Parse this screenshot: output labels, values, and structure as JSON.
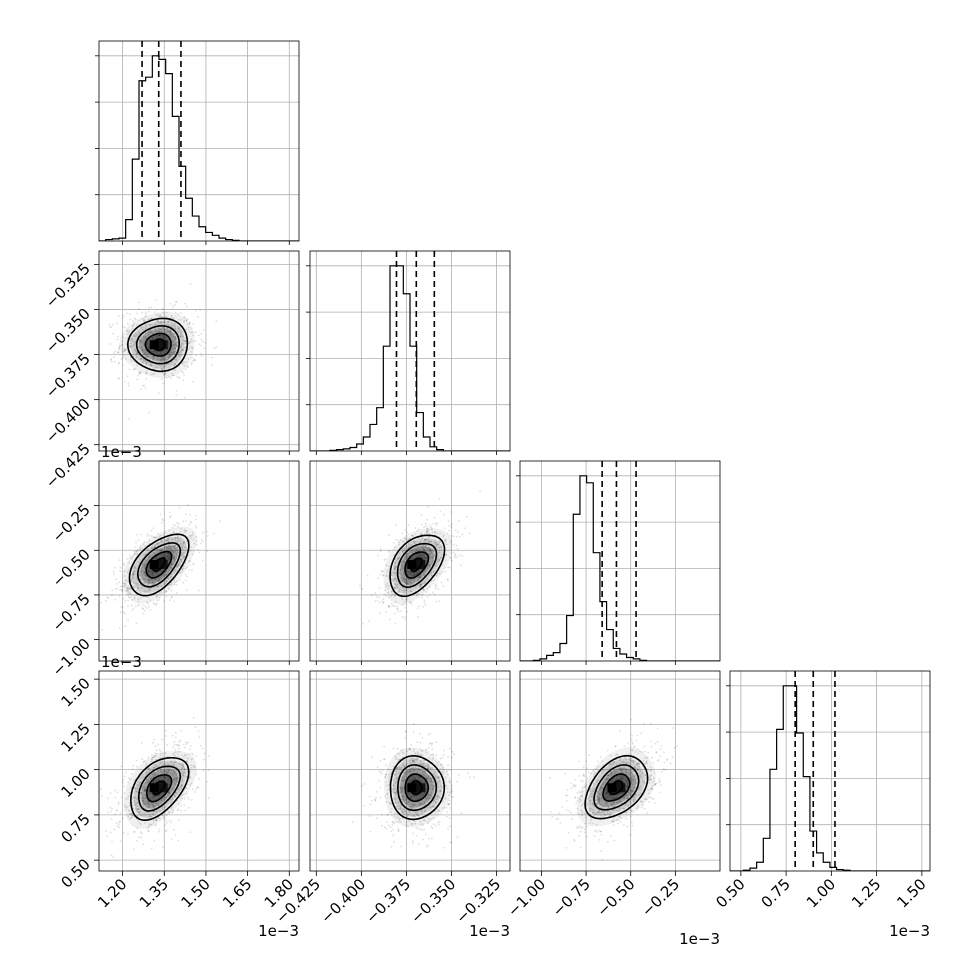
{
  "chart_data": {
    "type": "corner",
    "description_free": true,
    "params": [
      {
        "id": "p0",
        "range": [
          1.115,
          1.835
        ],
        "ticks": [
          1.2,
          1.35,
          1.5,
          1.65,
          1.8
        ],
        "tick_labels": [
          "1.20",
          "1.35",
          "1.50",
          "1.65",
          "1.80"
        ],
        "offset": "1e−3",
        "mean": 1.33,
        "sd": 0.06,
        "quantiles": [
          1.27,
          1.33,
          1.41
        ]
      },
      {
        "id": "p1",
        "range": [
          -0.4285,
          -0.3175
        ],
        "ticks": [
          -0.425,
          -0.4,
          -0.375,
          -0.35,
          -0.325
        ],
        "tick_labels": [
          "−0.425",
          "−0.400",
          "−0.375",
          "−0.350",
          "−0.325"
        ],
        "offset": "1e−3",
        "mean": -0.3695,
        "sd": 0.0085,
        "quantiles": [
          -0.3805,
          -0.3695,
          -0.3595
        ]
      },
      {
        "id": "p2",
        "range": [
          -1.12,
          -0.0
        ],
        "ticks": [
          -1.0,
          -0.75,
          -0.5,
          -0.25
        ],
        "tick_labels": [
          "−1.00",
          "−0.75",
          "−0.50",
          "−0.25"
        ],
        "offset": "1e−3",
        "mean": -0.58,
        "sd": 0.1,
        "quantiles": [
          -0.66,
          -0.58,
          -0.47
        ]
      },
      {
        "id": "p3",
        "range": [
          0.44,
          1.545
        ],
        "ticks": [
          0.5,
          0.75,
          1.0,
          1.25,
          1.5
        ],
        "tick_labels": [
          "0.50",
          "0.75",
          "1.00",
          "1.25",
          "1.50"
        ],
        "offset": "1e−3",
        "mean": 0.9,
        "sd": 0.1,
        "quantiles": [
          0.8,
          0.9,
          1.02
        ]
      }
    ],
    "histograms": [
      {
        "param": "p0",
        "edges_start": 1.115,
        "bin_width": 0.024,
        "counts": [
          0,
          2,
          3,
          4,
          30,
          115,
          225,
          230,
          260,
          255,
          235,
          175,
          105,
          60,
          35,
          20,
          12,
          8,
          4,
          2,
          1,
          0,
          0,
          0,
          0,
          0,
          0,
          0,
          0,
          0
        ]
      },
      {
        "param": "p1",
        "edges_start": -0.4285,
        "bin_width": 0.0037,
        "counts": [
          0,
          0,
          0,
          1,
          2,
          3,
          5,
          10,
          20,
          38,
          62,
          150,
          265,
          265,
          225,
          150,
          55,
          20,
          6,
          2,
          0,
          0,
          0,
          0,
          0,
          0,
          0,
          0,
          0,
          0
        ]
      },
      {
        "param": "p2",
        "edges_start": -1.12,
        "bin_width": 0.0373,
        "counts": [
          0,
          0,
          1,
          3,
          8,
          12,
          25,
          65,
          210,
          265,
          255,
          155,
          85,
          45,
          18,
          10,
          5,
          3,
          1,
          0,
          0,
          0,
          0,
          0,
          0,
          0,
          0,
          0,
          0,
          0
        ]
      },
      {
        "param": "p3",
        "edges_start": 0.44,
        "bin_width": 0.0368,
        "counts": [
          0,
          0,
          1,
          4,
          12,
          45,
          140,
          195,
          255,
          255,
          190,
          130,
          55,
          25,
          12,
          5,
          2,
          1,
          0,
          0,
          0,
          0,
          0,
          0,
          0,
          0,
          0,
          0,
          0,
          0
        ]
      }
    ],
    "pairs": [
      {
        "x": "p0",
        "y": "p1",
        "rho": 0.0
      },
      {
        "x": "p0",
        "y": "p2",
        "rho": 0.55
      },
      {
        "x": "p1",
        "y": "p2",
        "rho": 0.45
      },
      {
        "x": "p0",
        "y": "p3",
        "rho": 0.5
      },
      {
        "x": "p1",
        "y": "p3",
        "rho": 0.05
      },
      {
        "x": "p2",
        "y": "p3",
        "rho": 0.45
      }
    ],
    "contour_levels_sigma": [
      0.5,
      1.0,
      1.5,
      2.0
    ],
    "grid": true
  },
  "colors": {
    "line": "#000000",
    "grid": "#b0b0b0",
    "scatter": "#000000",
    "background": "#ffffff"
  }
}
